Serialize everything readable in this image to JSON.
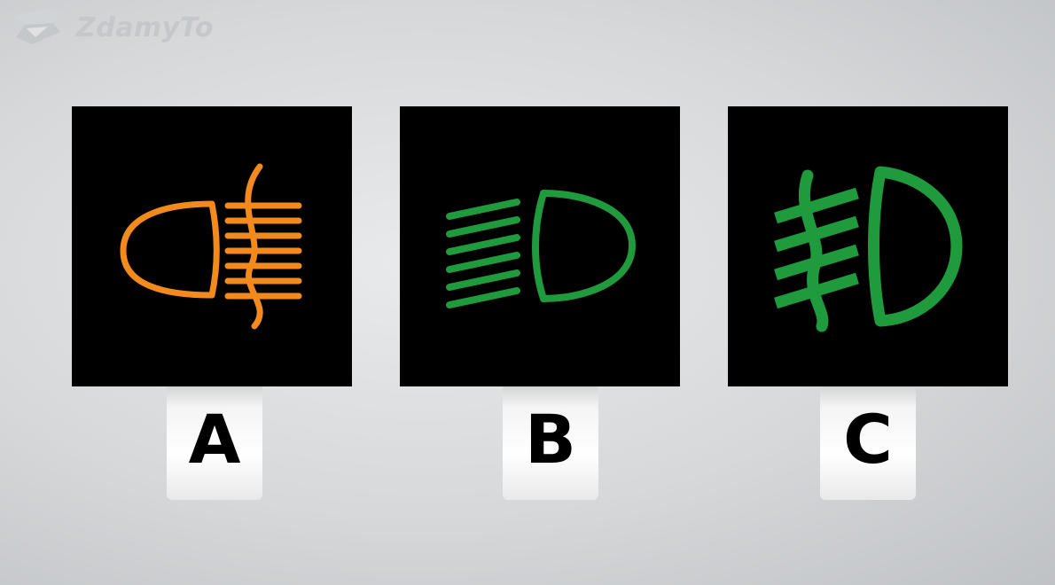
{
  "watermark": {
    "brand": "ZdamyTo",
    "icon": "zdamyto-logo-icon"
  },
  "options": [
    {
      "label": "A",
      "icon": "rear-fog-light-icon",
      "color": "#f28a1d"
    },
    {
      "label": "B",
      "icon": "dipped-beam-icon",
      "color": "#1f9a3c"
    },
    {
      "label": "C",
      "icon": "front-fog-light-icon",
      "color": "#1f9a3c"
    }
  ],
  "colors": {
    "panel": "#000000",
    "orange": "#f28a1d",
    "green": "#1f9a3c"
  }
}
